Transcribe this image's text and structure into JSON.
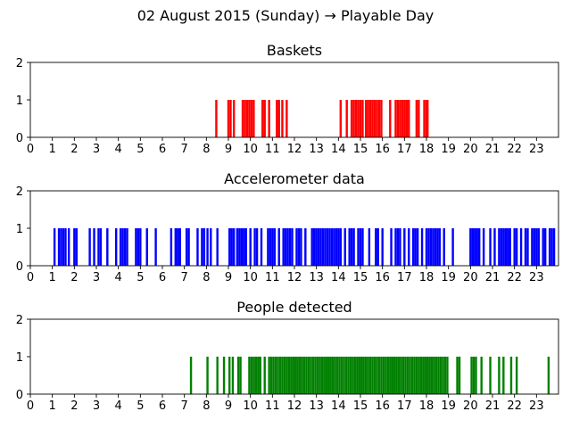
{
  "suptitle": "02 August 2015 (Sunday) → Playable Day",
  "chart_data": [
    {
      "type": "bar",
      "title": "Baskets",
      "color": "#ff0000",
      "xlim": [
        0,
        24
      ],
      "ylim": [
        0,
        2
      ],
      "xticks": [
        "0",
        "1",
        "2",
        "3",
        "4",
        "5",
        "6",
        "7",
        "8",
        "9",
        "10",
        "11",
        "12",
        "13",
        "14",
        "15",
        "16",
        "17",
        "18",
        "19",
        "20",
        "21",
        "22",
        "23"
      ],
      "yticks": [
        "0",
        "1",
        "2"
      ],
      "value": 1,
      "x": [
        8.45,
        9.0,
        9.1,
        9.25,
        9.65,
        9.75,
        9.85,
        9.95,
        10.05,
        10.15,
        10.55,
        10.65,
        10.85,
        11.2,
        11.3,
        11.45,
        11.65,
        14.1,
        14.38,
        14.6,
        14.7,
        14.8,
        14.9,
        15.0,
        15.1,
        15.25,
        15.35,
        15.45,
        15.55,
        15.65,
        15.75,
        15.85,
        15.95,
        16.35,
        16.6,
        16.7,
        16.8,
        16.9,
        17.0,
        17.1,
        17.2,
        17.55,
        17.65,
        17.9,
        18.0,
        18.05
      ]
    },
    {
      "type": "bar",
      "title": "Accelerometer data",
      "color": "#0000ff",
      "xlim": [
        0,
        24
      ],
      "ylim": [
        0,
        2
      ],
      "xticks": [
        "0",
        "1",
        "2",
        "3",
        "4",
        "5",
        "6",
        "7",
        "8",
        "9",
        "10",
        "11",
        "12",
        "13",
        "14",
        "15",
        "16",
        "17",
        "18",
        "19",
        "20",
        "21",
        "22",
        "23"
      ],
      "yticks": [
        "0",
        "1",
        "2"
      ],
      "value": 1,
      "x": [
        1.1,
        1.3,
        1.4,
        1.5,
        1.6,
        1.75,
        2.0,
        2.1,
        2.7,
        2.9,
        3.1,
        3.2,
        3.5,
        3.9,
        4.1,
        4.2,
        4.3,
        4.4,
        4.8,
        4.9,
        5.0,
        5.3,
        5.7,
        6.4,
        6.6,
        6.7,
        6.8,
        7.1,
        7.2,
        7.6,
        7.8,
        7.9,
        8.05,
        8.2,
        8.5,
        9.05,
        9.15,
        9.25,
        9.4,
        9.5,
        9.6,
        9.7,
        9.8,
        10.0,
        10.2,
        10.3,
        10.5,
        10.8,
        10.9,
        11.0,
        11.1,
        11.3,
        11.5,
        11.6,
        11.7,
        11.8,
        11.9,
        12.1,
        12.2,
        12.3,
        12.5,
        12.8,
        12.9,
        13.0,
        13.1,
        13.2,
        13.3,
        13.4,
        13.5,
        13.6,
        13.7,
        13.8,
        13.9,
        14.0,
        14.1,
        14.3,
        14.5,
        14.6,
        14.7,
        14.9,
        15.0,
        15.1,
        15.4,
        15.7,
        15.8,
        16.0,
        16.4,
        16.6,
        16.7,
        16.8,
        17.0,
        17.2,
        17.4,
        17.5,
        17.6,
        17.8,
        18.0,
        18.1,
        18.2,
        18.3,
        18.4,
        18.5,
        18.6,
        18.8,
        19.2,
        20.0,
        20.1,
        20.2,
        20.3,
        20.4,
        20.6,
        20.9,
        21.1,
        21.3,
        21.4,
        21.5,
        21.6,
        21.7,
        21.8,
        22.0,
        22.1,
        22.3,
        22.5,
        22.6,
        22.8,
        22.9,
        23.0,
        23.1,
        23.3,
        23.4,
        23.6,
        23.7,
        23.8
      ]
    },
    {
      "type": "bar",
      "title": "People detected",
      "color": "#008000",
      "xlim": [
        0,
        24
      ],
      "ylim": [
        0,
        2
      ],
      "xticks": [
        "0",
        "1",
        "2",
        "3",
        "4",
        "5",
        "6",
        "7",
        "8",
        "9",
        "10",
        "11",
        "12",
        "13",
        "14",
        "15",
        "16",
        "17",
        "18",
        "19",
        "20",
        "21",
        "22",
        "23"
      ],
      "yticks": [
        "0",
        "1",
        "2"
      ],
      "value": 1,
      "x": [
        7.3,
        8.05,
        8.5,
        8.8,
        9.05,
        9.2,
        9.45,
        9.55,
        9.95,
        10.05,
        10.15,
        10.25,
        10.35,
        10.45,
        10.65,
        10.85,
        10.95,
        11.05,
        11.15,
        11.25,
        11.35,
        11.45,
        11.55,
        11.65,
        11.75,
        11.85,
        11.95,
        12.05,
        12.15,
        12.25,
        12.35,
        12.45,
        12.55,
        12.65,
        12.75,
        12.85,
        12.95,
        13.05,
        13.15,
        13.25,
        13.35,
        13.45,
        13.55,
        13.65,
        13.75,
        13.85,
        13.95,
        14.05,
        14.15,
        14.25,
        14.35,
        14.45,
        14.55,
        14.65,
        14.75,
        14.85,
        14.95,
        15.05,
        15.15,
        15.25,
        15.35,
        15.45,
        15.55,
        15.65,
        15.75,
        15.85,
        15.95,
        16.05,
        16.15,
        16.25,
        16.35,
        16.45,
        16.55,
        16.65,
        16.75,
        16.85,
        16.95,
        17.05,
        17.15,
        17.25,
        17.35,
        17.45,
        17.55,
        17.65,
        17.75,
        17.85,
        17.95,
        18.05,
        18.15,
        18.25,
        18.35,
        18.45,
        18.55,
        18.65,
        18.75,
        18.85,
        18.95,
        19.4,
        19.5,
        20.05,
        20.15,
        20.25,
        20.5,
        20.9,
        21.3,
        21.5,
        21.85,
        22.1,
        23.55
      ]
    }
  ]
}
